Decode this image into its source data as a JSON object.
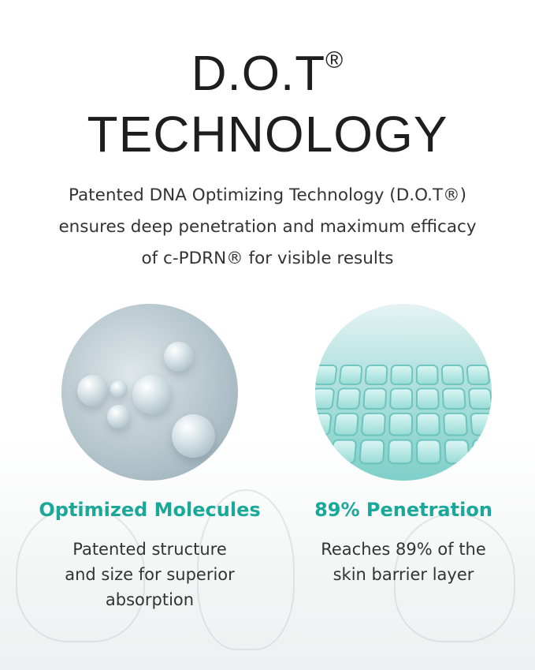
{
  "header": {
    "title_line1": "D.O.T",
    "registered": "®",
    "title_line2": "TECHNOLOGY"
  },
  "subtitle": [
    "Patented DNA Optimizing Technology (D.O.T®)",
    "ensures deep penetration and maximum efficacy",
    "of c-PDRN® for visible results"
  ],
  "features": [
    {
      "title": "Optimized Molecules",
      "body": [
        "Patented structure",
        "and size for superior",
        "absorption"
      ],
      "image": "molecule-structure"
    },
    {
      "title": "89% Penetration",
      "body": [
        "Reaches 89% of the",
        "skin barrier layer"
      ],
      "image": "cell-grid"
    }
  ],
  "colors": {
    "accent": "#1aa89a",
    "text": "#2b2b2b"
  }
}
